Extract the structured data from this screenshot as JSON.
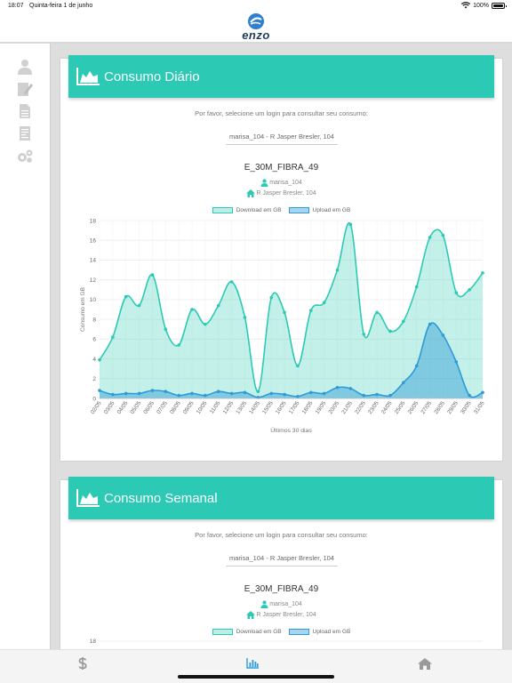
{
  "status_bar": {
    "time": "18:07",
    "date": "Quinta-feira 1 de junho",
    "battery": "100%"
  },
  "app": {
    "logo_text": "enzo"
  },
  "sidebar": {
    "items": [
      {
        "icon": "user-icon"
      },
      {
        "icon": "edit-document-icon"
      },
      {
        "icon": "document-icon"
      },
      {
        "icon": "report-icon"
      },
      {
        "icon": "gears-icon"
      }
    ]
  },
  "daily": {
    "title": "Consumo Diário",
    "prompt": "Por favor, selecione um login para consultar seu consumo:",
    "login": "marisa_104 - R Jasper Bresler, 104",
    "plan": "E_30M_FIBRA_49",
    "user": "marisa_104",
    "address": "R Jasper Bresler, 104"
  },
  "weekly": {
    "title": "Consumo Semanal",
    "prompt": "Por favor, selecione um login para consultar seu consumo:",
    "login": "marisa_104 - R Jasper Bresler, 104",
    "plan": "E_30M_FIBRA_49",
    "user": "marisa_104",
    "address": "R Jasper Bresler, 104",
    "y_top_tick": "18"
  },
  "chart_data": [
    {
      "type": "area",
      "x": [
        "02/05",
        "03/05",
        "04/05",
        "05/05",
        "06/05",
        "07/05",
        "08/05",
        "09/05",
        "10/05",
        "11/05",
        "12/05",
        "13/05",
        "14/05",
        "15/05",
        "16/05",
        "17/05",
        "18/05",
        "19/05",
        "20/05",
        "21/05",
        "22/05",
        "23/05",
        "24/05",
        "25/05",
        "26/05",
        "27/05",
        "28/05",
        "29/05",
        "30/05",
        "31/05"
      ],
      "series": [
        {
          "name": "Download em GB",
          "values": [
            3.9,
            6.2,
            10.3,
            9.4,
            12.5,
            7.0,
            5.4,
            9.0,
            7.5,
            9.4,
            11.8,
            8.2,
            0.7,
            10.2,
            8.7,
            3.3,
            8.9,
            9.7,
            13.0,
            17.6,
            6.5,
            8.7,
            6.8,
            7.8,
            11.3,
            16.3,
            16.5,
            10.7,
            11.0,
            12.7
          ],
          "color": "#2ccab5"
        },
        {
          "name": "Upload em GB",
          "values": [
            0.8,
            0.4,
            0.5,
            0.5,
            0.8,
            0.7,
            0.3,
            0.5,
            0.3,
            0.7,
            0.5,
            0.6,
            0.1,
            0.5,
            0.4,
            0.2,
            0.6,
            0.5,
            1.1,
            1.0,
            0.3,
            0.4,
            0.3,
            1.6,
            3.3,
            7.5,
            6.4,
            3.7,
            0.3,
            0.6
          ],
          "color": "#2e9bd8"
        }
      ],
      "xlabel": "Últimos 30 dias",
      "ylabel": "Consumo em GB",
      "ylim": [
        0,
        18
      ],
      "yticks": [
        0,
        2,
        4,
        6,
        8,
        10,
        12,
        14,
        16,
        18
      ],
      "grid": true,
      "legend": "top"
    }
  ]
}
